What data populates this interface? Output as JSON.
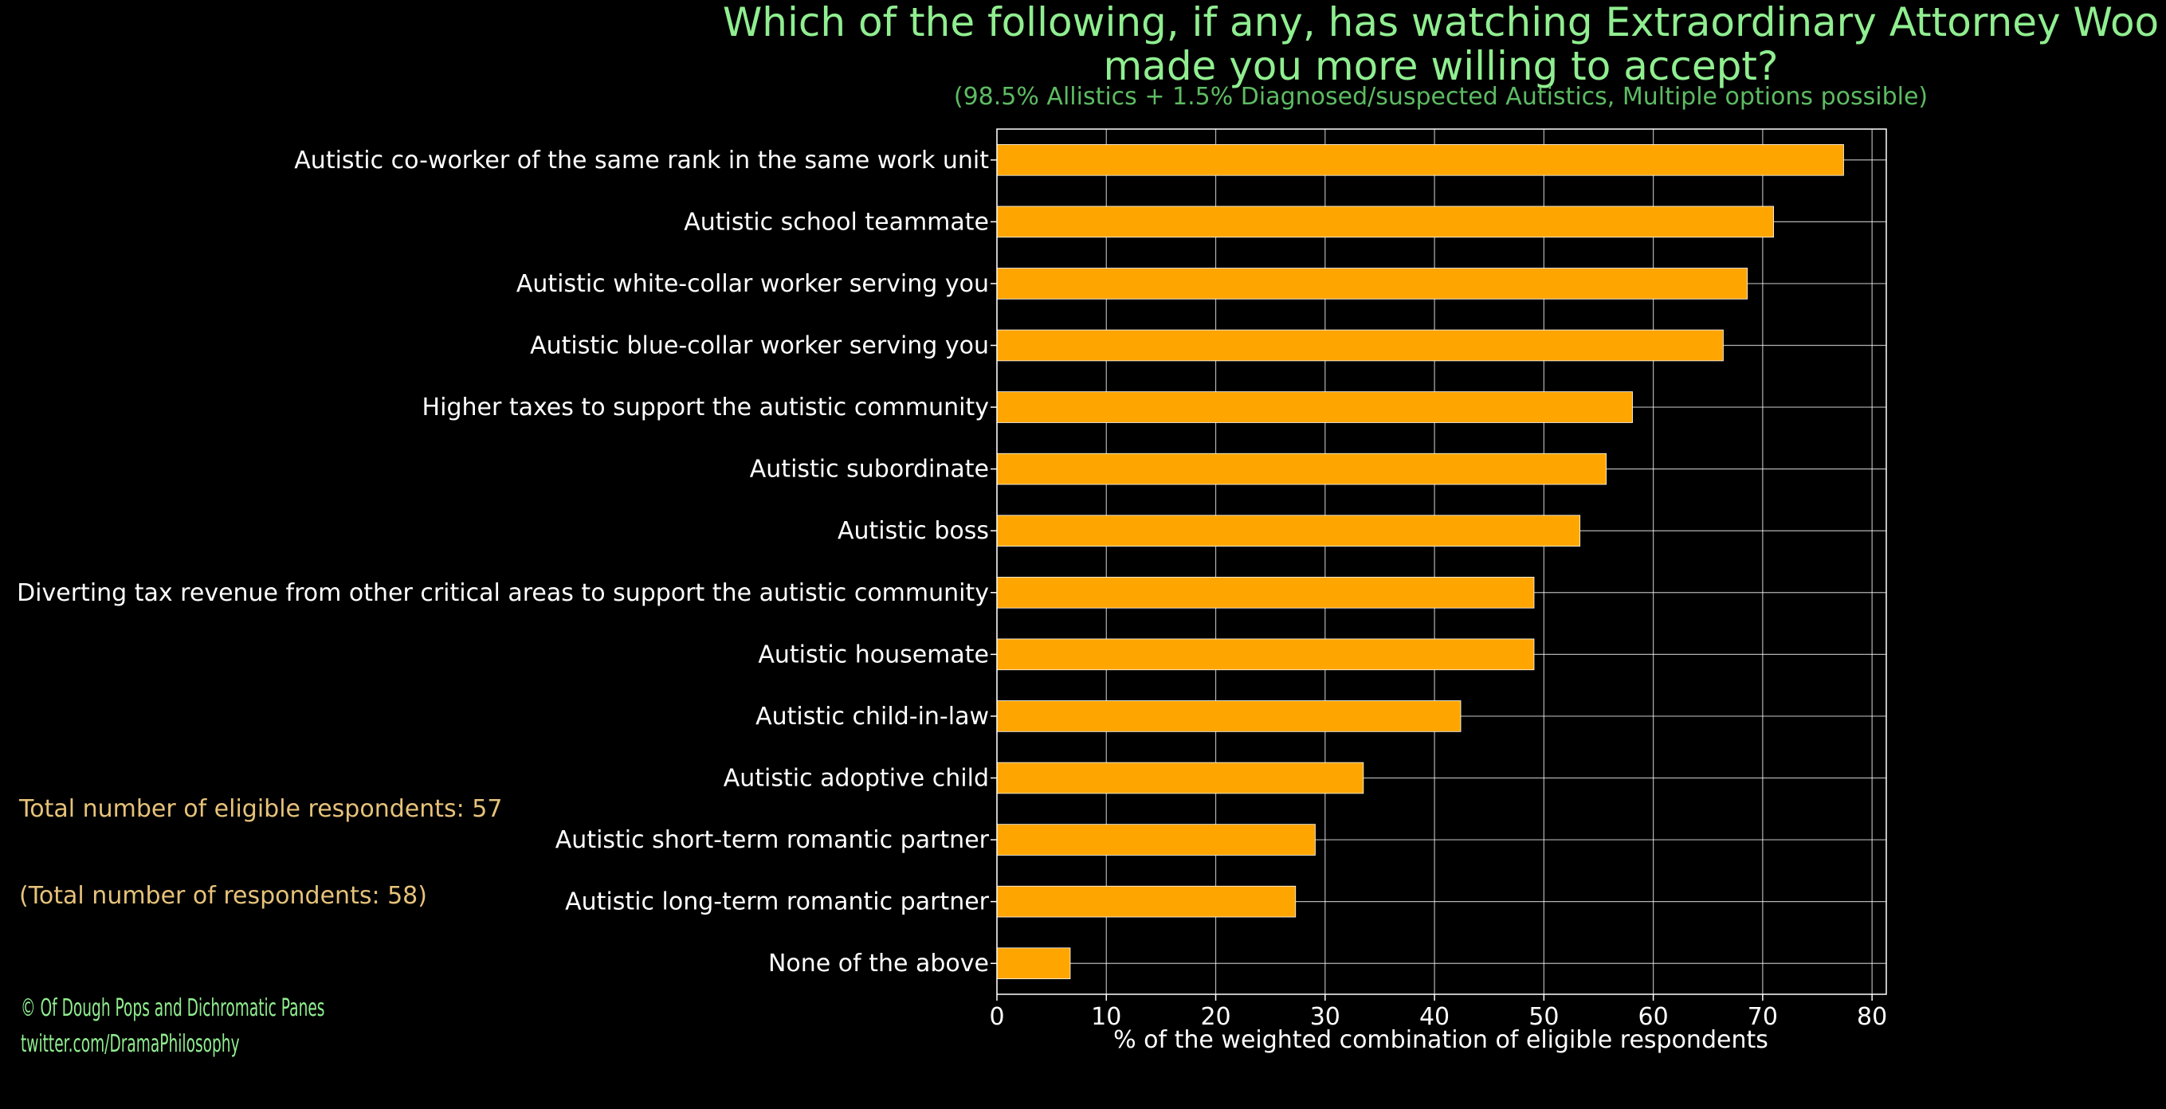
{
  "colors": {
    "background": "#000000",
    "bar": "#ffa500",
    "title": "#90ee90",
    "subtitle": "#5dbb63",
    "note": "#e6c27a",
    "grid": "#ffffff",
    "text": "#ffffff"
  },
  "notes": {
    "eligible": "Total number of eligible respondents: 57",
    "total": "(Total number of respondents: 58)"
  },
  "credit": {
    "line1": "© Of Dough Pops and Dichromatic Panes",
    "line2": "twitter.com/DramaPhilosophy"
  },
  "chart_data": {
    "type": "bar",
    "orientation": "horizontal",
    "title_lines": [
      "Which of the following, if any, has watching Extraordinary Attorney Woo",
      "made you more willing to accept?"
    ],
    "subtitle": "(98.5% Allistics + 1.5% Diagnosed/suspected Autistics, Multiple options possible)",
    "xlabel": "% of the weighted combination of eligible respondents",
    "ylabel": "",
    "xlim": [
      0,
      81.3
    ],
    "xticks": [
      "0",
      "10",
      "20",
      "30",
      "40",
      "50",
      "60",
      "70",
      "80"
    ],
    "grid": true,
    "categories": [
      "Autistic co-worker of the same rank in the same work unit",
      "Autistic school teammate",
      "Autistic white-collar worker serving you",
      "Autistic blue-collar worker serving you",
      "Higher taxes to support the autistic community",
      "Autistic subordinate",
      "Autistic boss",
      "Diverting tax revenue from other critical areas to support the autistic community",
      "Autistic housemate",
      "Autistic child-in-law",
      "Autistic adoptive child",
      "Autistic short-term romantic partner",
      "Autistic long-term romantic partner",
      "None of the above"
    ],
    "values": [
      77.4,
      71.0,
      68.6,
      66.4,
      58.1,
      55.7,
      53.3,
      49.1,
      49.1,
      42.4,
      33.5,
      29.1,
      27.3,
      6.7
    ]
  }
}
